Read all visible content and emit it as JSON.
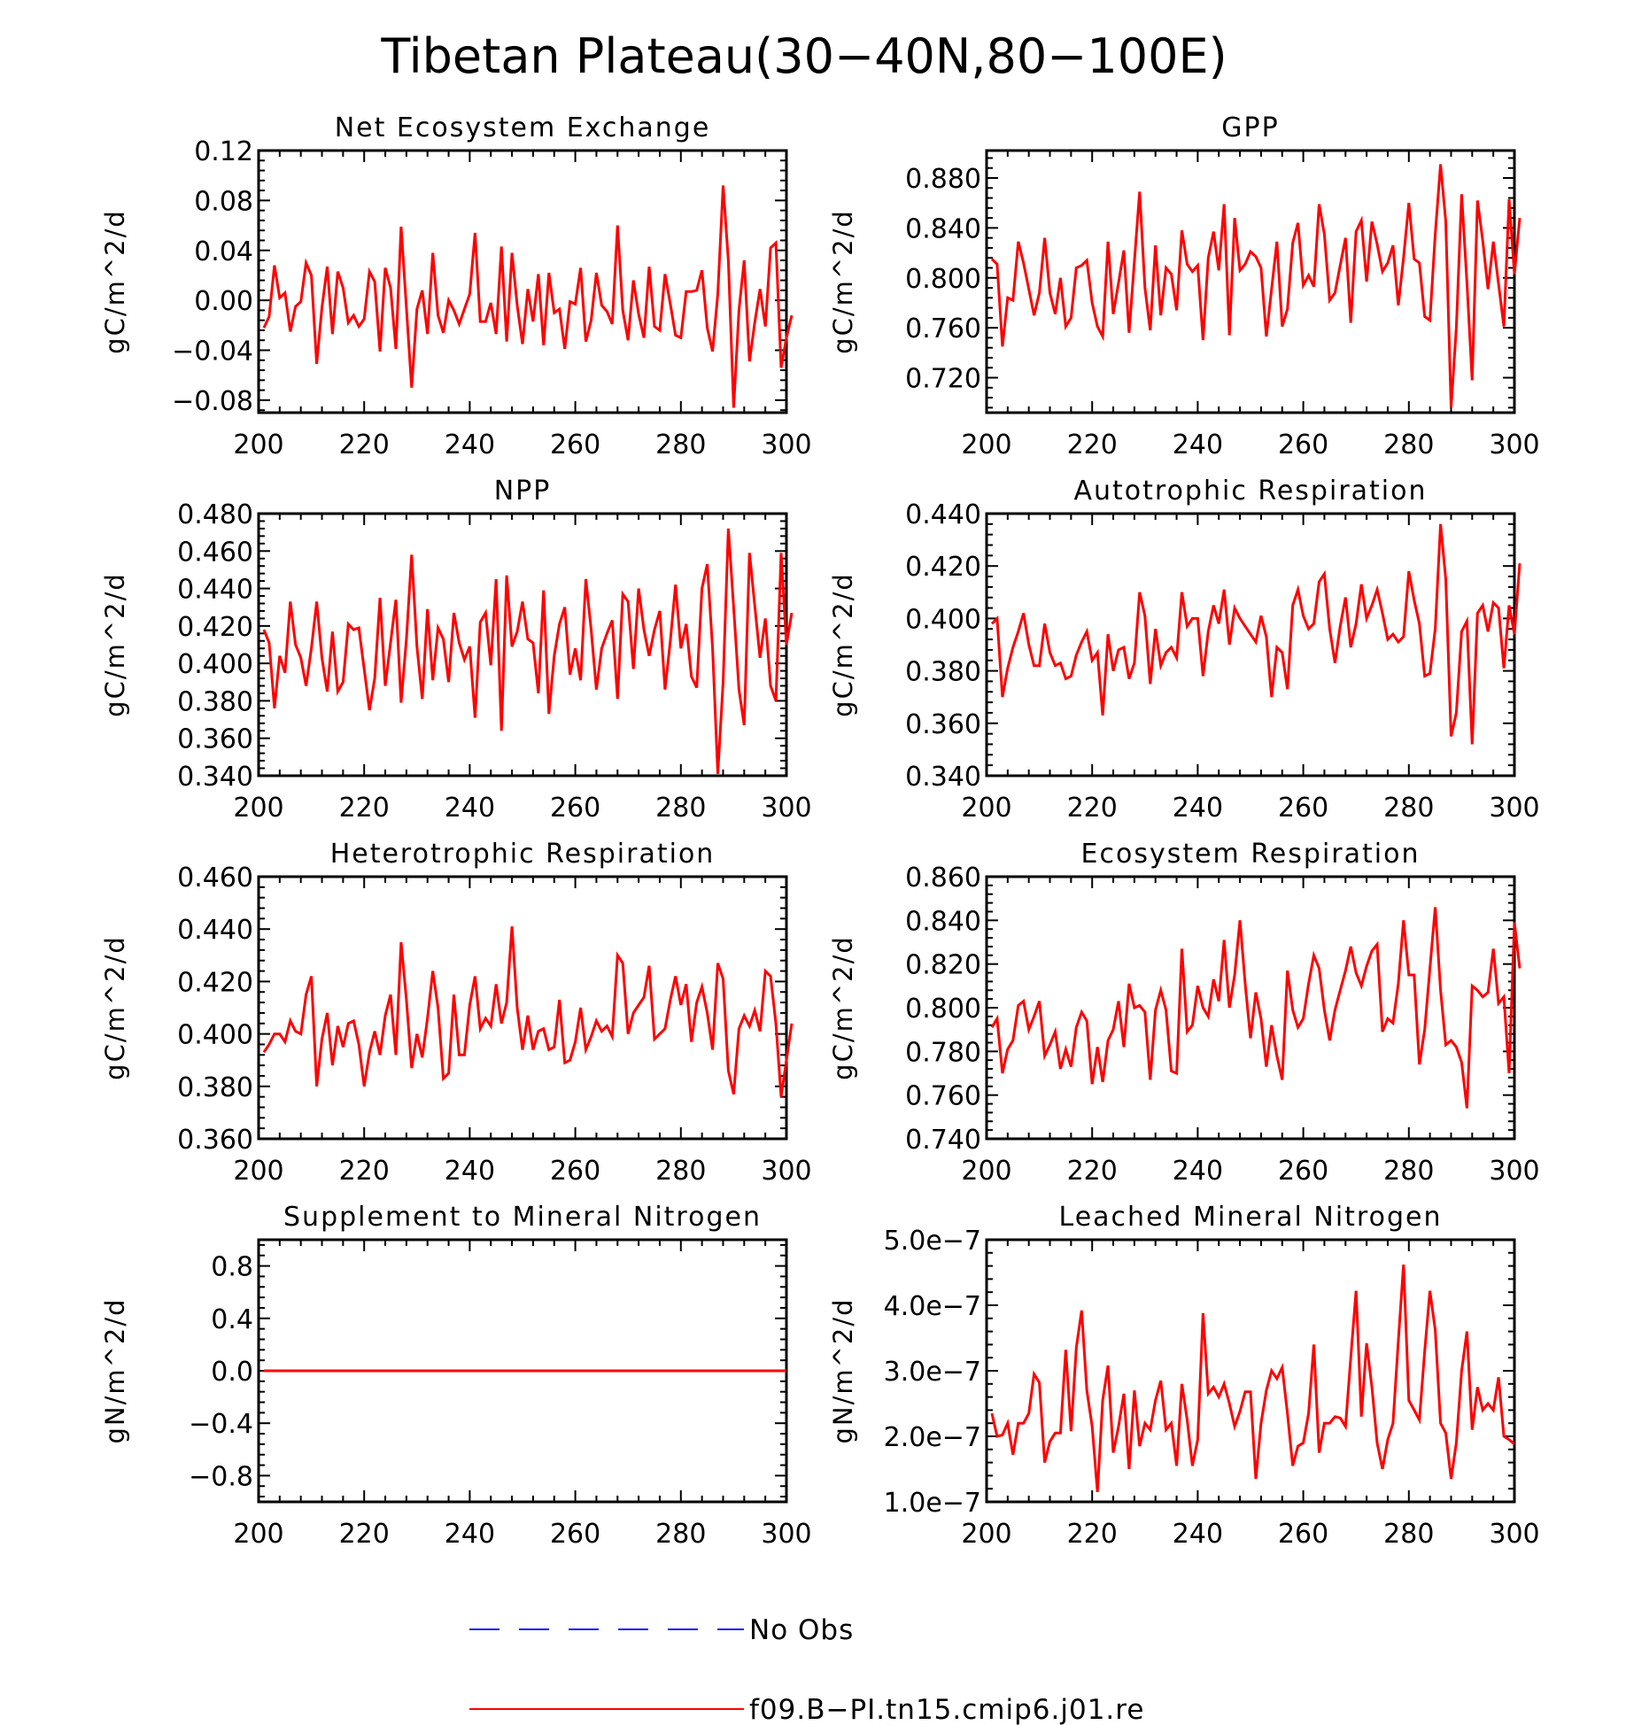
{
  "page": {
    "title": "Tibetan Plateau(30-40N,80-100E)",
    "legend": [
      {
        "label": "No Obs",
        "color": "#1414ff",
        "style": "dashed"
      },
      {
        "label": "f09.B-PI.tn15.cmip6.j01.re",
        "color": "#ff0000",
        "style": "solid"
      }
    ]
  },
  "chart_data": [
    {
      "type": "line",
      "title": "Net Ecosystem Exchange",
      "ylabel": "gC/m^2/d",
      "xlim": [
        200,
        300
      ],
      "xticks": [
        200,
        220,
        240,
        260,
        280,
        300
      ],
      "ylim": [
        -0.09,
        0.12
      ],
      "yticks": [
        -0.08,
        -0.04,
        0.0,
        0.04,
        0.08,
        0.12
      ],
      "ytick_labels": [
        "-0.08",
        "-0.04",
        "0.00",
        "0.04",
        "0.08",
        "0.12"
      ],
      "series": [
        {
          "color": "#ff0000",
          "x_start": 201,
          "x_step": 1,
          "values": [
            -0.022,
            -0.013,
            0.028,
            0.002,
            0.006,
            -0.025,
            -0.005,
            -0.001,
            0.03,
            0.02,
            -0.051,
            -0.006,
            0.027,
            -0.027,
            0.023,
            0.01,
            -0.018,
            -0.012,
            -0.021,
            -0.015,
            0.023,
            0.015,
            -0.041,
            0.026,
            0.01,
            -0.039,
            0.059,
            -0.006,
            -0.07,
            -0.007,
            0.008,
            -0.027,
            0.038,
            -0.012,
            -0.026,
            0.0,
            -0.008,
            -0.019,
            -0.007,
            0.005,
            0.054,
            -0.017,
            -0.017,
            -0.002,
            -0.027,
            0.043,
            -0.033,
            0.038,
            -0.004,
            -0.035,
            0.009,
            -0.017,
            0.021,
            -0.036,
            0.022,
            -0.01,
            -0.007,
            -0.039,
            -0.001,
            -0.003,
            0.026,
            -0.033,
            -0.016,
            0.022,
            -0.004,
            -0.009,
            -0.019,
            0.06,
            -0.008,
            -0.032,
            0.016,
            -0.011,
            -0.03,
            0.027,
            -0.021,
            -0.024,
            0.021,
            -0.003,
            -0.028,
            -0.03,
            0.007,
            0.007,
            0.008,
            0.024,
            -0.022,
            -0.041,
            0.005,
            0.092,
            0.032,
            -0.086,
            -0.008,
            0.032,
            -0.049,
            -0.018,
            0.009,
            -0.021,
            0.042,
            0.046,
            -0.054,
            -0.03,
            -0.012
          ]
        }
      ]
    },
    {
      "type": "line",
      "title": "GPP",
      "ylabel": "gC/m^2/d",
      "xlim": [
        200,
        300
      ],
      "xticks": [
        200,
        220,
        240,
        260,
        280,
        300
      ],
      "ylim": [
        0.692,
        0.902
      ],
      "yticks": [
        0.72,
        0.76,
        0.8,
        0.84,
        0.88
      ],
      "ytick_labels": [
        "0.720",
        "0.760",
        "0.800",
        "0.840",
        "0.880"
      ],
      "series": [
        {
          "color": "#ff0000",
          "x_start": 201,
          "x_step": 1,
          "values": [
            0.815,
            0.811,
            0.745,
            0.784,
            0.782,
            0.829,
            0.812,
            0.791,
            0.77,
            0.788,
            0.832,
            0.788,
            0.771,
            0.8,
            0.761,
            0.768,
            0.808,
            0.81,
            0.814,
            0.78,
            0.761,
            0.753,
            0.829,
            0.771,
            0.796,
            0.822,
            0.756,
            0.813,
            0.869,
            0.792,
            0.758,
            0.826,
            0.77,
            0.808,
            0.803,
            0.774,
            0.838,
            0.811,
            0.805,
            0.81,
            0.75,
            0.816,
            0.837,
            0.806,
            0.859,
            0.754,
            0.848,
            0.806,
            0.811,
            0.821,
            0.817,
            0.808,
            0.753,
            0.791,
            0.829,
            0.761,
            0.775,
            0.828,
            0.844,
            0.794,
            0.802,
            0.793,
            0.859,
            0.835,
            0.782,
            0.788,
            0.81,
            0.832,
            0.764,
            0.837,
            0.846,
            0.797,
            0.845,
            0.827,
            0.805,
            0.812,
            0.826,
            0.778,
            0.816,
            0.86,
            0.815,
            0.812,
            0.769,
            0.766,
            0.835,
            0.891,
            0.845,
            0.696,
            0.76,
            0.867,
            0.796,
            0.718,
            0.862,
            0.83,
            0.791,
            0.829,
            0.795,
            0.761,
            0.863,
            0.803,
            0.848
          ]
        }
      ]
    },
    {
      "type": "line",
      "title": "NPP",
      "ylabel": "gC/m^2/d",
      "xlim": [
        200,
        300
      ],
      "xticks": [
        200,
        220,
        240,
        260,
        280,
        300
      ],
      "ylim": [
        0.34,
        0.48
      ],
      "yticks": [
        0.34,
        0.36,
        0.38,
        0.4,
        0.42,
        0.44,
        0.46,
        0.48
      ],
      "ytick_labels": [
        "0.340",
        "0.360",
        "0.380",
        "0.400",
        "0.420",
        "0.440",
        "0.460",
        "0.480"
      ],
      "series": [
        {
          "color": "#ff0000",
          "x_start": 201,
          "x_step": 1,
          "values": [
            0.418,
            0.411,
            0.376,
            0.404,
            0.395,
            0.433,
            0.41,
            0.403,
            0.388,
            0.408,
            0.433,
            0.403,
            0.385,
            0.417,
            0.385,
            0.39,
            0.421,
            0.418,
            0.419,
            0.397,
            0.375,
            0.392,
            0.435,
            0.388,
            0.411,
            0.434,
            0.379,
            0.413,
            0.458,
            0.409,
            0.381,
            0.429,
            0.391,
            0.419,
            0.413,
            0.39,
            0.427,
            0.411,
            0.402,
            0.409,
            0.371,
            0.422,
            0.427,
            0.399,
            0.445,
            0.364,
            0.447,
            0.409,
            0.417,
            0.433,
            0.413,
            0.411,
            0.384,
            0.439,
            0.373,
            0.404,
            0.421,
            0.43,
            0.394,
            0.408,
            0.391,
            0.445,
            0.418,
            0.386,
            0.408,
            0.416,
            0.423,
            0.381,
            0.437,
            0.433,
            0.397,
            0.44,
            0.418,
            0.404,
            0.418,
            0.428,
            0.386,
            0.412,
            0.442,
            0.408,
            0.421,
            0.393,
            0.387,
            0.44,
            0.453,
            0.408,
            0.341,
            0.39,
            0.472,
            0.43,
            0.386,
            0.367,
            0.459,
            0.431,
            0.403,
            0.424,
            0.388,
            0.38,
            0.459,
            0.41,
            0.427
          ]
        }
      ]
    },
    {
      "type": "line",
      "title": "Autotrophic Respiration",
      "ylabel": "gC/m^2/d",
      "xlim": [
        200,
        300
      ],
      "xticks": [
        200,
        220,
        240,
        260,
        280,
        300
      ],
      "ylim": [
        0.34,
        0.44
      ],
      "yticks": [
        0.34,
        0.36,
        0.38,
        0.4,
        0.42,
        0.44
      ],
      "ytick_labels": [
        "0.340",
        "0.360",
        "0.380",
        "0.400",
        "0.420",
        "0.440"
      ],
      "series": [
        {
          "color": "#ff0000",
          "x_start": 201,
          "x_step": 1,
          "values": [
            0.398,
            0.4,
            0.37,
            0.381,
            0.389,
            0.395,
            0.402,
            0.39,
            0.382,
            0.382,
            0.398,
            0.387,
            0.382,
            0.383,
            0.377,
            0.378,
            0.386,
            0.391,
            0.395,
            0.384,
            0.387,
            0.363,
            0.394,
            0.38,
            0.388,
            0.389,
            0.377,
            0.383,
            0.41,
            0.401,
            0.375,
            0.396,
            0.382,
            0.387,
            0.389,
            0.385,
            0.41,
            0.397,
            0.4,
            0.4,
            0.378,
            0.395,
            0.405,
            0.398,
            0.411,
            0.39,
            0.404,
            0.4,
            0.397,
            0.394,
            0.391,
            0.401,
            0.393,
            0.37,
            0.389,
            0.387,
            0.373,
            0.405,
            0.411,
            0.401,
            0.396,
            0.398,
            0.414,
            0.417,
            0.396,
            0.383,
            0.397,
            0.408,
            0.389,
            0.398,
            0.413,
            0.4,
            0.405,
            0.411,
            0.402,
            0.392,
            0.394,
            0.391,
            0.393,
            0.418,
            0.407,
            0.398,
            0.378,
            0.379,
            0.396,
            0.436,
            0.415,
            0.355,
            0.364,
            0.395,
            0.399,
            0.352,
            0.402,
            0.405,
            0.395,
            0.406,
            0.404,
            0.381,
            0.405,
            0.394,
            0.421
          ]
        }
      ]
    },
    {
      "type": "line",
      "title": "Heterotrophic Respiration",
      "ylabel": "gC/m^2/d",
      "xlim": [
        200,
        300
      ],
      "xticks": [
        200,
        220,
        240,
        260,
        280,
        300
      ],
      "ylim": [
        0.36,
        0.46
      ],
      "yticks": [
        0.36,
        0.38,
        0.4,
        0.42,
        0.44,
        0.46
      ],
      "ytick_labels": [
        "0.360",
        "0.380",
        "0.400",
        "0.420",
        "0.440",
        "0.460"
      ],
      "series": [
        {
          "color": "#ff0000",
          "x_start": 201,
          "x_step": 1,
          "values": [
            0.393,
            0.396,
            0.4,
            0.4,
            0.397,
            0.405,
            0.401,
            0.4,
            0.415,
            0.422,
            0.38,
            0.398,
            0.408,
            0.388,
            0.403,
            0.395,
            0.404,
            0.405,
            0.396,
            0.38,
            0.393,
            0.401,
            0.392,
            0.407,
            0.415,
            0.392,
            0.435,
            0.413,
            0.387,
            0.4,
            0.391,
            0.406,
            0.424,
            0.41,
            0.383,
            0.385,
            0.415,
            0.392,
            0.392,
            0.411,
            0.422,
            0.402,
            0.406,
            0.403,
            0.419,
            0.404,
            0.412,
            0.441,
            0.41,
            0.394,
            0.407,
            0.394,
            0.401,
            0.402,
            0.394,
            0.395,
            0.413,
            0.389,
            0.39,
            0.397,
            0.41,
            0.394,
            0.399,
            0.405,
            0.401,
            0.403,
            0.399,
            0.43,
            0.427,
            0.4,
            0.408,
            0.411,
            0.414,
            0.426,
            0.398,
            0.4,
            0.402,
            0.413,
            0.422,
            0.411,
            0.419,
            0.397,
            0.412,
            0.418,
            0.408,
            0.394,
            0.427,
            0.421,
            0.386,
            0.377,
            0.402,
            0.407,
            0.403,
            0.409,
            0.401,
            0.424,
            0.422,
            0.404,
            0.376,
            0.39,
            0.404
          ]
        }
      ]
    },
    {
      "type": "line",
      "title": "Ecosystem Respiration",
      "ylabel": "gC/m^2/d",
      "xlim": [
        200,
        300
      ],
      "xticks": [
        200,
        220,
        240,
        260,
        280,
        300
      ],
      "ylim": [
        0.74,
        0.86
      ],
      "yticks": [
        0.74,
        0.76,
        0.78,
        0.8,
        0.82,
        0.84,
        0.86
      ],
      "ytick_labels": [
        "0.740",
        "0.760",
        "0.780",
        "0.800",
        "0.820",
        "0.840",
        "0.860"
      ],
      "series": [
        {
          "color": "#ff0000",
          "x_start": 201,
          "x_step": 1,
          "values": [
            0.791,
            0.795,
            0.77,
            0.781,
            0.785,
            0.801,
            0.803,
            0.79,
            0.796,
            0.803,
            0.778,
            0.783,
            0.789,
            0.772,
            0.781,
            0.773,
            0.791,
            0.798,
            0.794,
            0.765,
            0.782,
            0.766,
            0.785,
            0.79,
            0.803,
            0.782,
            0.811,
            0.8,
            0.801,
            0.798,
            0.767,
            0.799,
            0.808,
            0.799,
            0.771,
            0.77,
            0.827,
            0.789,
            0.792,
            0.81,
            0.8,
            0.796,
            0.813,
            0.803,
            0.831,
            0.8,
            0.815,
            0.84,
            0.811,
            0.786,
            0.807,
            0.795,
            0.773,
            0.792,
            0.778,
            0.767,
            0.817,
            0.799,
            0.791,
            0.795,
            0.811,
            0.824,
            0.818,
            0.799,
            0.785,
            0.799,
            0.808,
            0.817,
            0.828,
            0.816,
            0.81,
            0.819,
            0.826,
            0.829,
            0.789,
            0.795,
            0.793,
            0.811,
            0.84,
            0.815,
            0.815,
            0.774,
            0.79,
            0.818,
            0.846,
            0.808,
            0.783,
            0.785,
            0.782,
            0.775,
            0.754,
            0.81,
            0.808,
            0.805,
            0.807,
            0.827,
            0.802,
            0.805,
            0.77,
            0.839,
            0.818
          ]
        }
      ]
    },
    {
      "type": "line",
      "title": "Supplement to Mineral Nitrogen",
      "ylabel": "gN/m^2/d",
      "xlim": [
        200,
        300
      ],
      "xticks": [
        200,
        220,
        240,
        260,
        280,
        300
      ],
      "ylim": [
        -1.0,
        1.0
      ],
      "yticks": [
        -0.8,
        -0.4,
        0.0,
        0.4,
        0.8
      ],
      "ytick_labels": [
        "-0.8",
        "-0.4",
        "0.0",
        "0.4",
        "0.8"
      ],
      "series": [
        {
          "color": "#ff0000",
          "x": [
            201,
            300
          ],
          "values": [
            0.0,
            0.0
          ]
        }
      ]
    },
    {
      "type": "line",
      "title": "Leached Mineral Nitrogen",
      "ylabel": "gN/m^2/d",
      "xlim": [
        200,
        300
      ],
      "xticks": [
        200,
        220,
        240,
        260,
        280,
        300
      ],
      "ylim": [
        1e-07,
        5e-07
      ],
      "yticks": [
        1e-07,
        2e-07,
        3e-07,
        4e-07,
        5e-07
      ],
      "ytick_labels": [
        "1.0e-7",
        "2.0e-7",
        "3.0e-7",
        "4.0e-7",
        "5.0e-7"
      ],
      "value_unit_factor": 1e-07,
      "series": [
        {
          "color": "#ff0000",
          "x_start": 201,
          "x_step": 1,
          "values": [
            2.35,
            2.0,
            2.02,
            2.2,
            1.72,
            2.2,
            2.2,
            2.35,
            2.95,
            2.82,
            1.6,
            1.92,
            2.05,
            2.05,
            3.32,
            2.08,
            3.35,
            3.92,
            2.7,
            2.15,
            1.15,
            2.55,
            3.08,
            1.75,
            2.15,
            2.65,
            1.5,
            2.7,
            1.85,
            2.2,
            2.1,
            2.55,
            2.85,
            2.1,
            2.2,
            1.55,
            2.8,
            2.25,
            1.55,
            1.95,
            3.88,
            2.65,
            2.75,
            2.6,
            2.8,
            2.5,
            2.15,
            2.38,
            2.68,
            2.68,
            1.35,
            2.2,
            2.7,
            3.0,
            2.88,
            3.05,
            2.35,
            1.55,
            1.85,
            1.9,
            2.35,
            3.4,
            1.75,
            2.2,
            2.2,
            2.3,
            2.28,
            2.15,
            3.2,
            4.22,
            2.3,
            3.42,
            2.75,
            1.9,
            1.5,
            1.95,
            2.2,
            3.45,
            4.62,
            2.55,
            2.4,
            2.25,
            3.3,
            4.22,
            3.62,
            2.2,
            2.05,
            1.35,
            1.9,
            3.0,
            3.6,
            2.1,
            2.75,
            2.4,
            2.5,
            2.4,
            2.9,
            2.0,
            1.95,
            1.88
          ]
        }
      ]
    }
  ]
}
